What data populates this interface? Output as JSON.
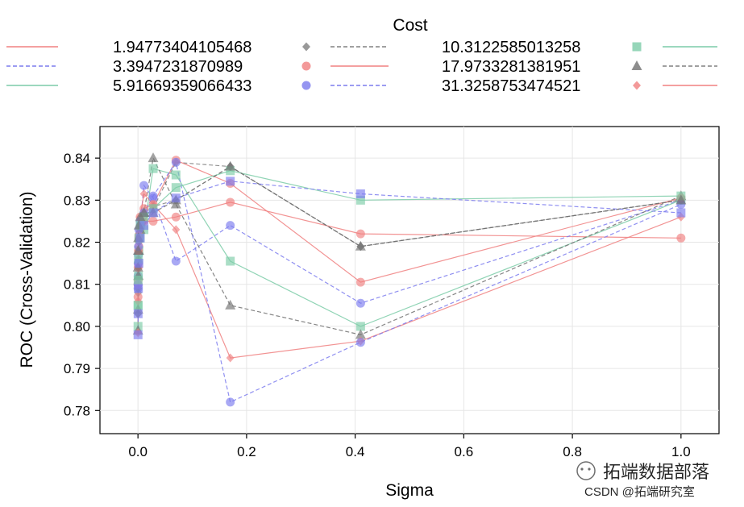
{
  "chart_data": {
    "type": "line",
    "title": "",
    "legend_title": "Cost",
    "xlabel": "Sigma",
    "ylabel": "ROC (Cross-Validation)",
    "xlim": [
      -0.07,
      1.07
    ],
    "ylim": [
      0.7745,
      0.8475
    ],
    "xticks": [
      0.0,
      0.2,
      0.4,
      0.6,
      0.8,
      1.0
    ],
    "xtick_labels": [
      "0.0",
      "0.2",
      "0.4",
      "0.6",
      "0.8",
      "1.0"
    ],
    "yticks": [
      0.78,
      0.79,
      0.8,
      0.81,
      0.82,
      0.83,
      0.84
    ],
    "ytick_labels": [
      "0.78",
      "0.79",
      "0.80",
      "0.81",
      "0.82",
      "0.83",
      "0.84"
    ],
    "grid": true,
    "legend_position": "top",
    "series": [
      {
        "name": "1.94773404105468",
        "marker": "diamond",
        "color": "#808080",
        "dash": "dashed",
        "x": [
          0.0001,
          0.0003,
          0.0008,
          0.0017,
          0.0041,
          0.011,
          0.028,
          0.07,
          0.17,
          0.41,
          1.0
        ],
        "values": [
          0.803,
          0.808,
          0.814,
          0.818,
          0.822,
          0.825,
          0.828,
          0.839,
          0.838,
          0.819,
          0.83
        ]
      },
      {
        "name": "3.3947231870989",
        "marker": "circle",
        "color": "#f08080",
        "dash": "solid",
        "x": [
          0.0001,
          0.0003,
          0.0008,
          0.0017,
          0.0041,
          0.011,
          0.028,
          0.07,
          0.17,
          0.41,
          1.0
        ],
        "values": [
          0.807,
          0.811,
          0.815,
          0.819,
          0.823,
          0.825,
          0.825,
          0.826,
          0.8295,
          0.822,
          0.821
        ]
      },
      {
        "name": "5.91669359066433",
        "marker": "circle",
        "color": "#7b7bee",
        "dash": "dashed",
        "x": [
          0.0001,
          0.0003,
          0.0008,
          0.0017,
          0.0041,
          0.011,
          0.028,
          0.07,
          0.17,
          0.41,
          1.0
        ],
        "values": [
          0.809,
          0.812,
          0.817,
          0.821,
          0.824,
          0.8335,
          0.8305,
          0.8155,
          0.824,
          0.8055,
          0.83
        ]
      },
      {
        "name": "10.3122585013258",
        "marker": "square",
        "color": "#7ccca8",
        "dash": "solid",
        "x": [
          0.0001,
          0.0003,
          0.0008,
          0.0017,
          0.0041,
          0.011,
          0.028,
          0.07,
          0.17,
          0.41,
          1.0
        ],
        "values": [
          0.8,
          0.805,
          0.812,
          0.818,
          0.821,
          0.823,
          0.8375,
          0.836,
          0.8155,
          0.8,
          0.83
        ]
      },
      {
        "name": "17.9733281381951",
        "marker": "triangle",
        "color": "#707070",
        "dash": "dashed",
        "x": [
          0.0001,
          0.0003,
          0.0008,
          0.0017,
          0.0041,
          0.011,
          0.028,
          0.07,
          0.17,
          0.41,
          1.0
        ],
        "values": [
          0.799,
          0.804,
          0.812,
          0.818,
          0.823,
          0.827,
          0.84,
          0.829,
          0.805,
          0.798,
          0.831
        ]
      },
      {
        "name": "31.3258753474521",
        "marker": "diamond",
        "color": "#f08080",
        "dash": "solid",
        "x": [
          0.0001,
          0.0003,
          0.0008,
          0.0017,
          0.0041,
          0.011,
          0.028,
          0.07,
          0.17,
          0.41,
          1.0
        ],
        "values": [
          0.7985,
          0.806,
          0.814,
          0.821,
          0.826,
          0.8315,
          0.829,
          0.823,
          0.7925,
          0.7965,
          0.826
        ]
      },
      {
        "name": "",
        "marker": "diamond",
        "color": "#808080",
        "dash": "dashed",
        "x": [
          0.0001,
          0.0003,
          0.0008,
          0.0017,
          0.0041,
          0.011,
          0.028,
          0.07,
          0.17,
          0.41,
          1.0
        ],
        "values": [
          0.803,
          0.809,
          0.816,
          0.82,
          0.824,
          0.827,
          0.8285,
          0.83,
          0.838,
          0.819,
          0.83
        ]
      },
      {
        "name": "",
        "marker": "circle",
        "color": "#f08080",
        "dash": "solid",
        "x": [
          0.0001,
          0.0003,
          0.0008,
          0.0017,
          0.0041,
          0.011,
          0.028,
          0.07,
          0.17,
          0.41,
          1.0
        ],
        "values": [
          0.81,
          0.814,
          0.818,
          0.8215,
          0.826,
          0.828,
          0.829,
          0.8395,
          0.834,
          0.8105,
          0.8305
        ]
      },
      {
        "name": "",
        "marker": "circle",
        "color": "#7b7bee",
        "dash": "dashed",
        "x": [
          0.0001,
          0.0003,
          0.0008,
          0.0017,
          0.0041,
          0.011,
          0.028,
          0.07,
          0.17,
          0.41,
          1.0
        ],
        "values": [
          0.81,
          0.815,
          0.819,
          0.823,
          0.825,
          0.827,
          0.831,
          0.839,
          0.782,
          0.7962,
          0.829
        ]
      },
      {
        "name": "",
        "marker": "square",
        "color": "#7ccca8",
        "dash": "solid",
        "x": [
          0.0001,
          0.0003,
          0.0008,
          0.0017,
          0.0041,
          0.011,
          0.028,
          0.07,
          0.17,
          0.41,
          1.0
        ],
        "values": [
          0.805,
          0.811,
          0.816,
          0.821,
          0.824,
          0.826,
          0.828,
          0.833,
          0.837,
          0.83,
          0.831
        ]
      },
      {
        "name": "",
        "marker": "triangle",
        "color": "#707070",
        "dash": "dashed",
        "x": [
          0.0001,
          0.0003,
          0.0008,
          0.0017,
          0.0041,
          0.011,
          0.028,
          0.07,
          0.17,
          0.41,
          1.0
        ],
        "values": [
          0.814,
          0.818,
          0.821,
          0.824,
          0.826,
          0.827,
          0.827,
          0.83,
          0.838,
          0.819,
          0.83
        ]
      },
      {
        "name": "",
        "marker": "square",
        "color": "#7b7bee",
        "dash": "dashed",
        "x": [
          0.0001,
          0.0003,
          0.0008,
          0.0017,
          0.0041,
          0.011,
          0.028,
          0.07,
          0.17,
          0.41,
          1.0
        ],
        "values": [
          0.798,
          0.803,
          0.809,
          0.815,
          0.821,
          0.824,
          0.827,
          0.8305,
          0.8345,
          0.8315,
          0.827
        ]
      }
    ]
  },
  "watermark": {
    "brand": "拓端数据部落",
    "sub": "CSDN @拓端研究室"
  }
}
